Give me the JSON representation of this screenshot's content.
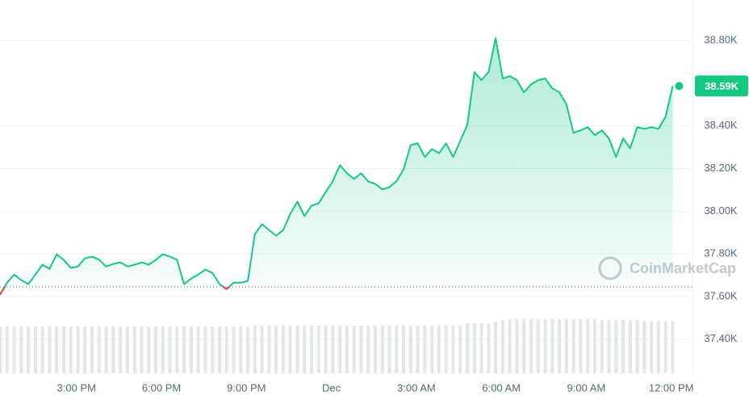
{
  "chart_data": {
    "type": "line",
    "x": [
      0,
      0.25,
      0.5,
      0.75,
      1,
      1.25,
      1.5,
      1.75,
      2,
      2.25,
      2.5,
      2.75,
      3,
      3.25,
      3.5,
      3.75,
      4,
      4.25,
      4.5,
      4.75,
      5,
      5.25,
      5.5,
      5.75,
      6,
      6.25,
      6.5,
      6.75,
      7,
      7.25,
      7.5,
      7.75,
      8,
      8.25,
      8.5,
      8.75,
      9,
      9.25,
      9.5,
      9.75,
      10,
      10.25,
      10.5,
      10.75,
      11,
      11.25,
      11.5,
      11.75,
      12,
      12.25,
      12.5,
      12.75,
      13,
      13.25,
      13.5,
      13.75,
      14,
      14.25,
      14.5,
      14.75,
      15,
      15.25,
      15.5,
      15.75,
      16,
      16.25,
      16.5,
      16.75,
      17,
      17.25,
      17.5,
      17.75,
      18,
      18.25,
      18.5,
      18.75,
      19,
      19.25,
      19.5,
      19.75,
      20,
      20.25,
      20.5,
      20.75,
      21,
      21.25,
      21.5,
      21.75,
      22,
      22.25,
      22.5,
      22.75,
      23,
      23.25,
      23.5,
      23.75
    ],
    "series": [
      {
        "color": "#16c784",
        "down_color": "#ea3943",
        "values": [
          37608,
          37665,
          37703,
          37677,
          37658,
          37703,
          37749,
          37730,
          37798,
          37772,
          37734,
          37741,
          37779,
          37787,
          37772,
          37741,
          37753,
          37760,
          37741,
          37749,
          37760,
          37749,
          37772,
          37798,
          37787,
          37772,
          37658,
          37684,
          37703,
          37726,
          37711,
          37658,
          37635,
          37665,
          37665,
          37673,
          37893,
          37939,
          37912,
          37885,
          37912,
          37988,
          38045,
          37977,
          38026,
          38037,
          38090,
          38140,
          38216,
          38178,
          38151,
          38178,
          38140,
          38128,
          38102,
          38113,
          38140,
          38197,
          38310,
          38318,
          38254,
          38291,
          38272,
          38318,
          38254,
          38329,
          38405,
          38652,
          38614,
          38652,
          38811,
          38622,
          38633,
          38614,
          38557,
          38595,
          38614,
          38622,
          38576,
          38557,
          38500,
          38367,
          38379,
          38394,
          38356,
          38379,
          38341,
          38254,
          38341,
          38295,
          38394,
          38386,
          38394,
          38386,
          38443,
          38587
        ]
      }
    ],
    "volume": [
      58,
      58,
      58,
      58,
      58,
      58,
      58,
      58,
      58,
      58,
      58,
      58,
      58,
      58,
      58,
      58,
      58,
      58,
      58,
      58,
      58,
      58,
      58,
      58,
      58,
      58,
      58,
      58,
      58,
      58,
      58,
      58,
      58,
      58,
      58,
      58,
      59,
      59,
      59,
      59,
      59,
      59,
      59,
      59,
      59,
      59,
      59,
      59,
      59,
      59,
      59,
      59,
      59,
      59,
      59,
      59,
      59,
      59,
      59,
      59,
      59,
      59,
      59,
      59,
      59,
      59,
      62,
      62,
      62,
      62,
      64,
      66,
      67,
      67,
      67,
      67,
      67,
      67,
      67,
      67,
      67,
      67,
      67,
      67,
      67,
      66,
      66,
      66,
      66,
      66,
      66,
      65,
      65,
      65,
      65,
      65
    ],
    "reference_line": 37646,
    "current_price_label": "38.59K",
    "watermark": "CoinMarketCap",
    "xlim": [
      0,
      24.45
    ],
    "xticks": [
      {
        "value": 2.7,
        "label": "3:00 PM"
      },
      {
        "value": 5.7,
        "label": "6:00 PM"
      },
      {
        "value": 8.7,
        "label": "9:00 PM"
      },
      {
        "value": 11.7,
        "label": "Dec"
      },
      {
        "value": 14.7,
        "label": "3:00 AM"
      },
      {
        "value": 17.7,
        "label": "6:00 AM"
      },
      {
        "value": 20.7,
        "label": "9:00 AM"
      },
      {
        "value": 23.7,
        "label": "12:00 PM"
      }
    ],
    "ylim": [
      37240,
      38990
    ],
    "yticks": [
      {
        "value": 38800,
        "label": "38.80K"
      },
      {
        "value": 38400,
        "label": "38.40K"
      },
      {
        "value": 38200,
        "label": "38.20K"
      },
      {
        "value": 38000,
        "label": "38.00K"
      },
      {
        "value": 37800,
        "label": "37.80K"
      },
      {
        "value": 37600,
        "label": "37.60K"
      },
      {
        "value": 37400,
        "label": "37.40K"
      }
    ],
    "grid": true
  }
}
